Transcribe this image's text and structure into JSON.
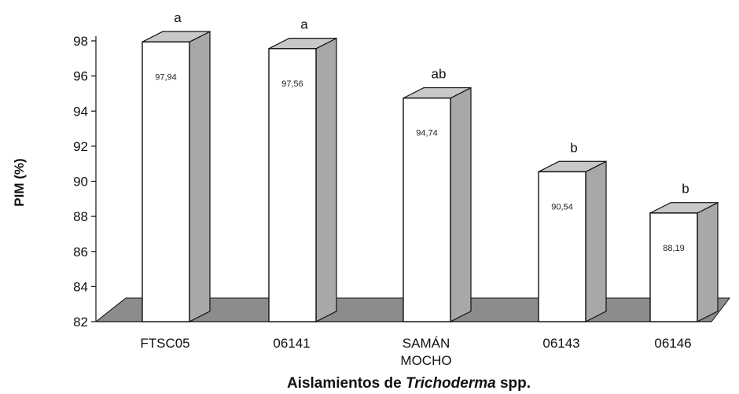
{
  "chart_data": {
    "type": "bar",
    "categories": [
      "FTSC05",
      "06141",
      "SAMÁN MOCHO",
      "06143",
      "06146"
    ],
    "category_lines": [
      [
        "FTSC05"
      ],
      [
        "06141"
      ],
      [
        "SAMÁN",
        "MOCHO"
      ],
      [
        "06143"
      ],
      [
        "06146"
      ]
    ],
    "values": [
      97.94,
      97.56,
      94.74,
      90.54,
      88.19
    ],
    "value_labels": [
      "97,94",
      "97,56",
      "94,74",
      "90,54",
      "88,19"
    ],
    "significance": [
      "a",
      "a",
      "ab",
      "b",
      "b"
    ],
    "ylabel": "PIM (%)",
    "xlabel_parts": [
      {
        "text": "Aislamientos de ",
        "italic": false
      },
      {
        "text": "Trichoderma",
        "italic": true
      },
      {
        "text": " spp.",
        "italic": false
      }
    ],
    "ylim": [
      82,
      98
    ],
    "yticks": [
      82,
      84,
      86,
      88,
      90,
      92,
      94,
      96,
      98
    ],
    "grid": false,
    "style": "3d",
    "colors": {
      "bar_face": "#ffffff",
      "bar_side": "#a8a8a8",
      "bar_top": "#c8c8c8",
      "floor": "#8c8c8c",
      "edge": "#111111"
    }
  }
}
